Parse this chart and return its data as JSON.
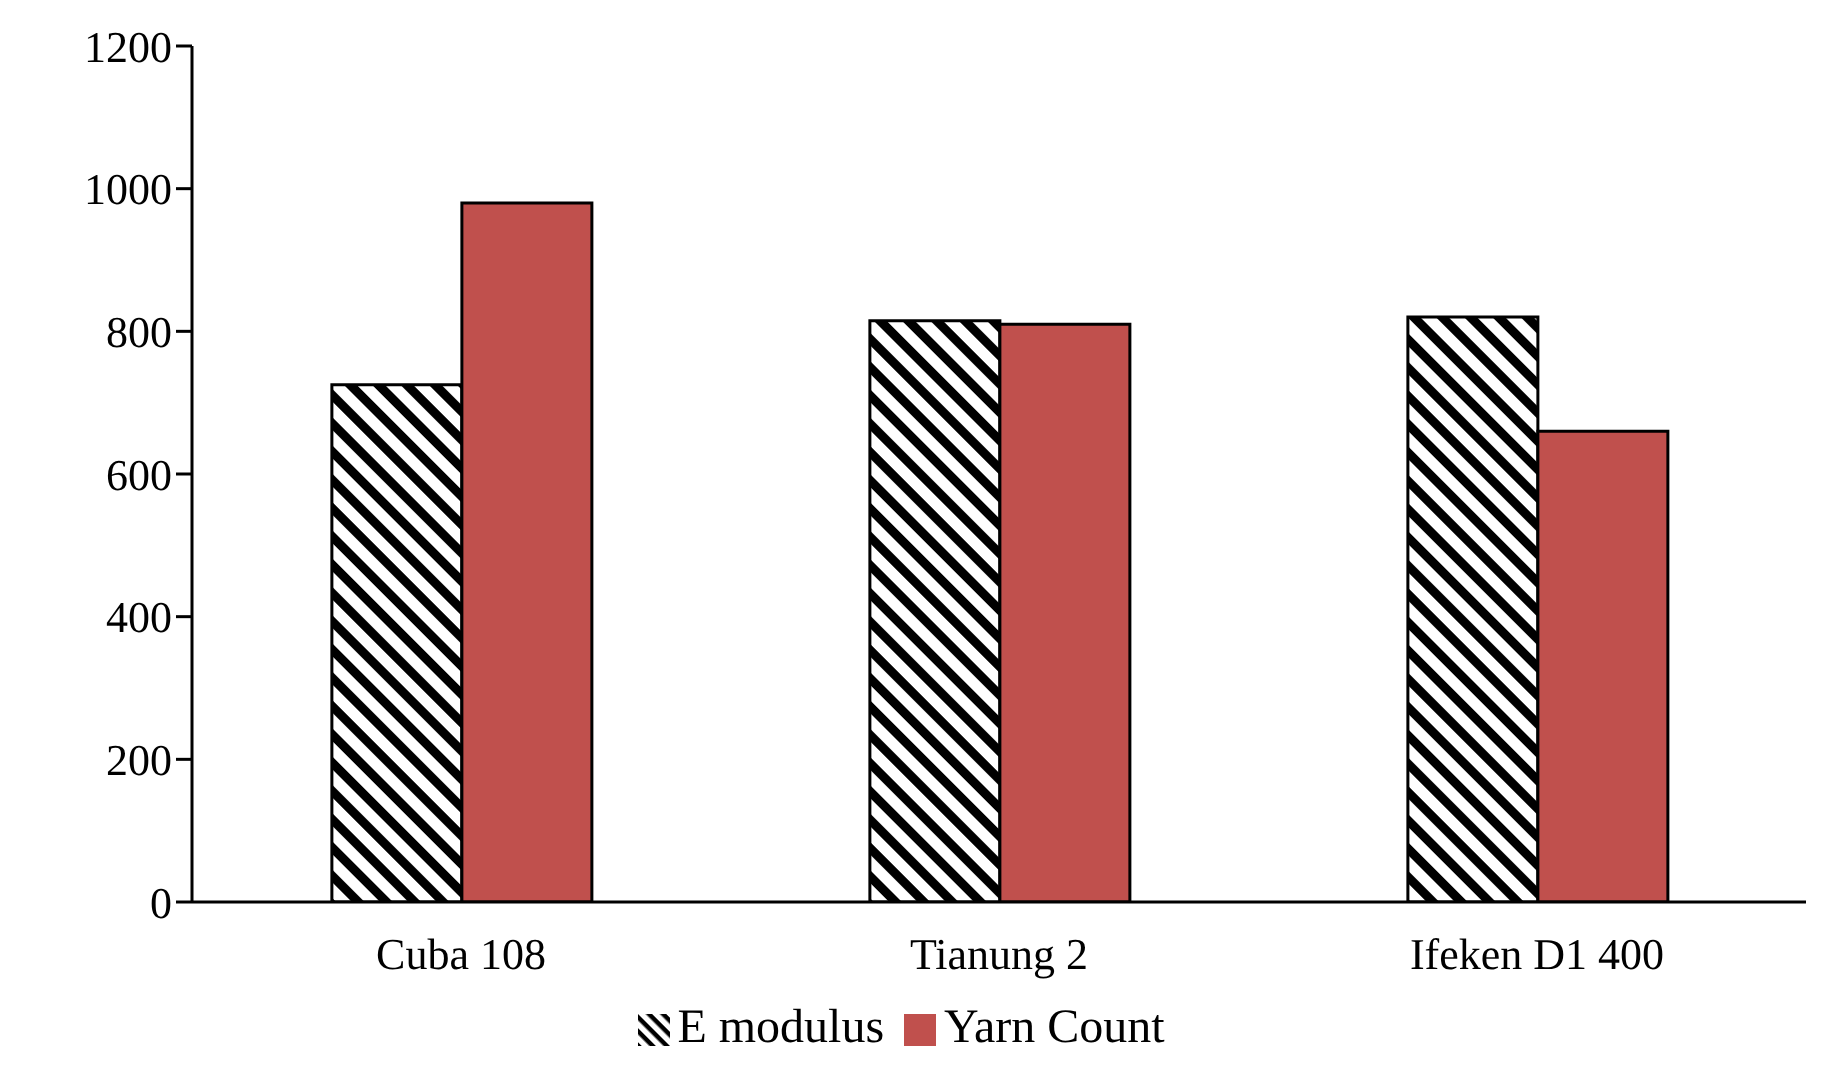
{
  "chart_data": {
    "type": "bar",
    "categories": [
      "Cuba 108",
      "Tianung 2",
      "Ifeken D1 400"
    ],
    "series": [
      {
        "name": "E modulus",
        "color": "#000000",
        "values": [
          725,
          815,
          820
        ]
      },
      {
        "name": "Yarn Count",
        "color": "#c0504d",
        "values": [
          980,
          810,
          660
        ]
      }
    ],
    "ylim": [
      0,
      1200
    ],
    "yticks": [
      0,
      200,
      400,
      600,
      800,
      1000,
      1200
    ],
    "grid": false,
    "legend": "bottom"
  }
}
